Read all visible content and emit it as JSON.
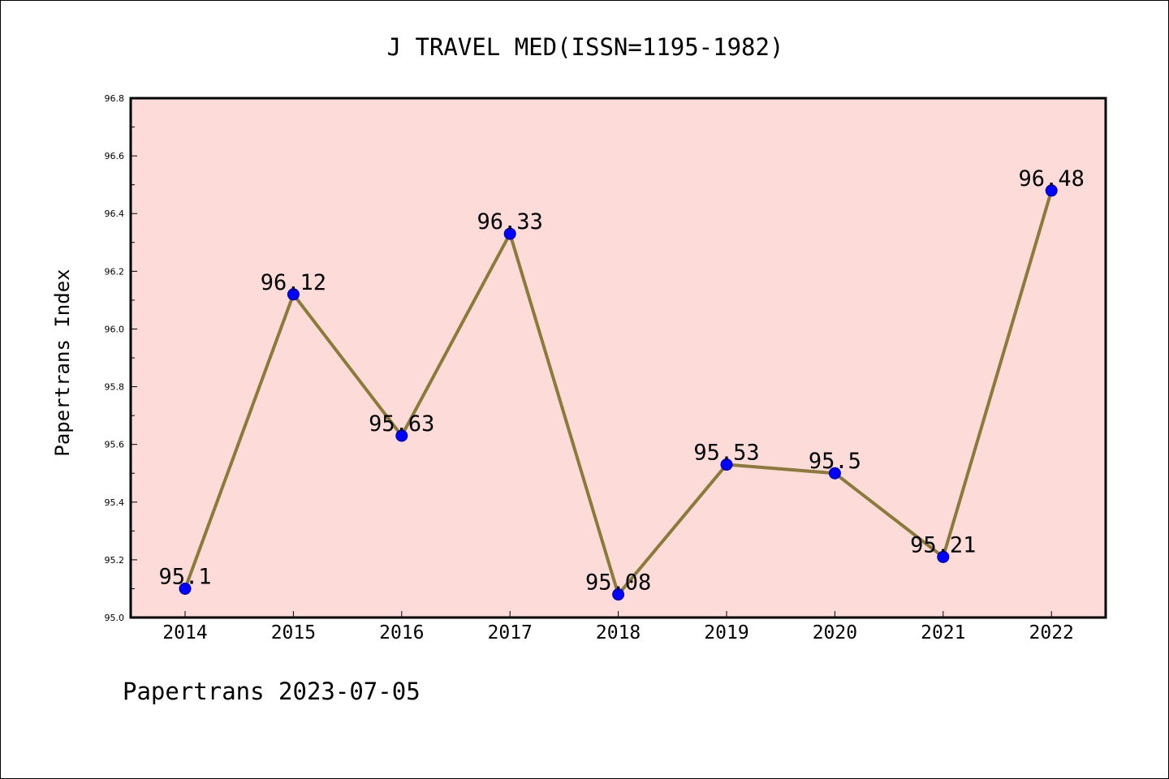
{
  "chart_data": {
    "type": "line",
    "title": "J TRAVEL MED(ISSN=1195-1982)",
    "ylabel": "Papertrans Index",
    "xlabel": "",
    "categories": [
      "2014",
      "2015",
      "2016",
      "2017",
      "2018",
      "2019",
      "2020",
      "2021",
      "2022"
    ],
    "values": [
      95.1,
      96.12,
      95.63,
      96.33,
      95.08,
      95.53,
      95.5,
      95.21,
      96.48
    ],
    "value_labels": [
      "95.1",
      "96.12",
      "95.63",
      "96.33",
      "95.08",
      "95.53",
      "95.5",
      "95.21",
      "96.48"
    ],
    "ylim": [
      95.0,
      96.8
    ],
    "yticks": [
      "95.0",
      "95.2",
      "95.4",
      "95.6",
      "95.8",
      "96.0",
      "96.2",
      "96.4",
      "96.6",
      "96.8"
    ],
    "grid": false,
    "legend": "none",
    "colors": {
      "plot_background": "#fddbd8",
      "line": "#8b7a3a",
      "marker": "#0000ff"
    }
  },
  "footer": {
    "text": "Papertrans 2023-07-05"
  }
}
